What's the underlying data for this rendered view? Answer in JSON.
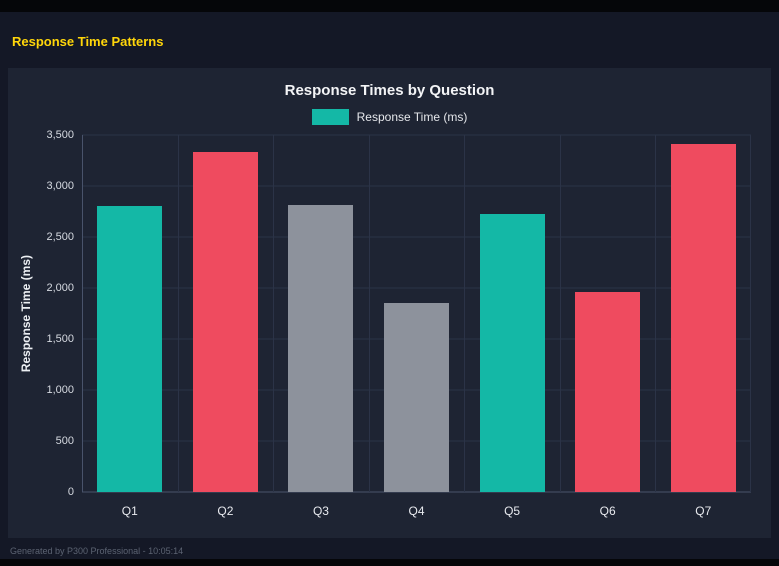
{
  "page": {
    "title": "Response Time Patterns",
    "footer": "Generated by P300 Professional - 10:05:14",
    "accent_color": "#ffd60a",
    "panel_background": "#1e2433",
    "page_background": "#141826"
  },
  "chart_data": {
    "type": "bar",
    "title": "Response Times by Question",
    "series": [
      {
        "name": "Response Time (ms)",
        "color": "#14b8a6"
      }
    ],
    "categories": [
      "Q1",
      "Q2",
      "Q3",
      "Q4",
      "Q5",
      "Q6",
      "Q7"
    ],
    "values": [
      2800,
      3330,
      2810,
      1850,
      2730,
      1960,
      3410
    ],
    "bar_colors": [
      "#14b8a6",
      "#ef4b5f",
      "#8d929c",
      "#8d929c",
      "#14b8a6",
      "#ef4b5f",
      "#ef4b5f"
    ],
    "xlabel": "",
    "ylabel": "Response Time (ms)",
    "ylim": [
      0,
      3500
    ],
    "yticks": [
      0,
      500,
      1000,
      1500,
      2000,
      2500,
      3000,
      3500
    ],
    "ytick_labels": [
      "0",
      "500",
      "1,000",
      "1,500",
      "2,000",
      "2,500",
      "3,000",
      "3,500"
    ],
    "grid": true,
    "legend_position": "top"
  }
}
